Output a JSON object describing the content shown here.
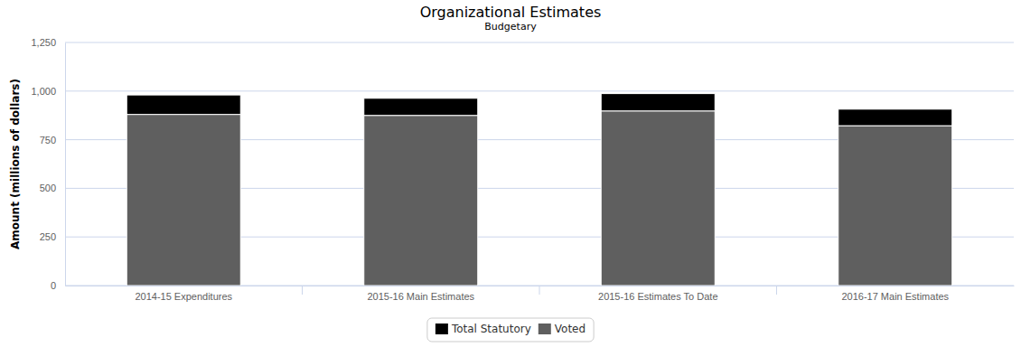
{
  "chart_data": {
    "type": "bar",
    "title": "Organizational Estimates",
    "subtitle": "Budgetary",
    "y_label": "Amount (millions of dollars)",
    "categories": [
      "2014-15 Expenditures",
      "2015-16 Main Estimates",
      "2015-16 Estimates To Date",
      "2016-17 Main Estimates"
    ],
    "series": [
      {
        "name": "Total Statutory",
        "color": "#000000",
        "values": [
          100,
          88,
          89,
          85
        ]
      },
      {
        "name": "Voted",
        "color": "#5f5f5f",
        "values": [
          880,
          875,
          898,
          822
        ]
      }
    ],
    "stacked": true,
    "ylim": [
      0,
      1250
    ],
    "yticks": [
      0,
      250,
      500,
      750,
      {
        "value": 1000,
        "label": "1,000"
      },
      {
        "value": 1250,
        "label": "1,250"
      }
    ],
    "grid": true,
    "legend": "bottom"
  }
}
